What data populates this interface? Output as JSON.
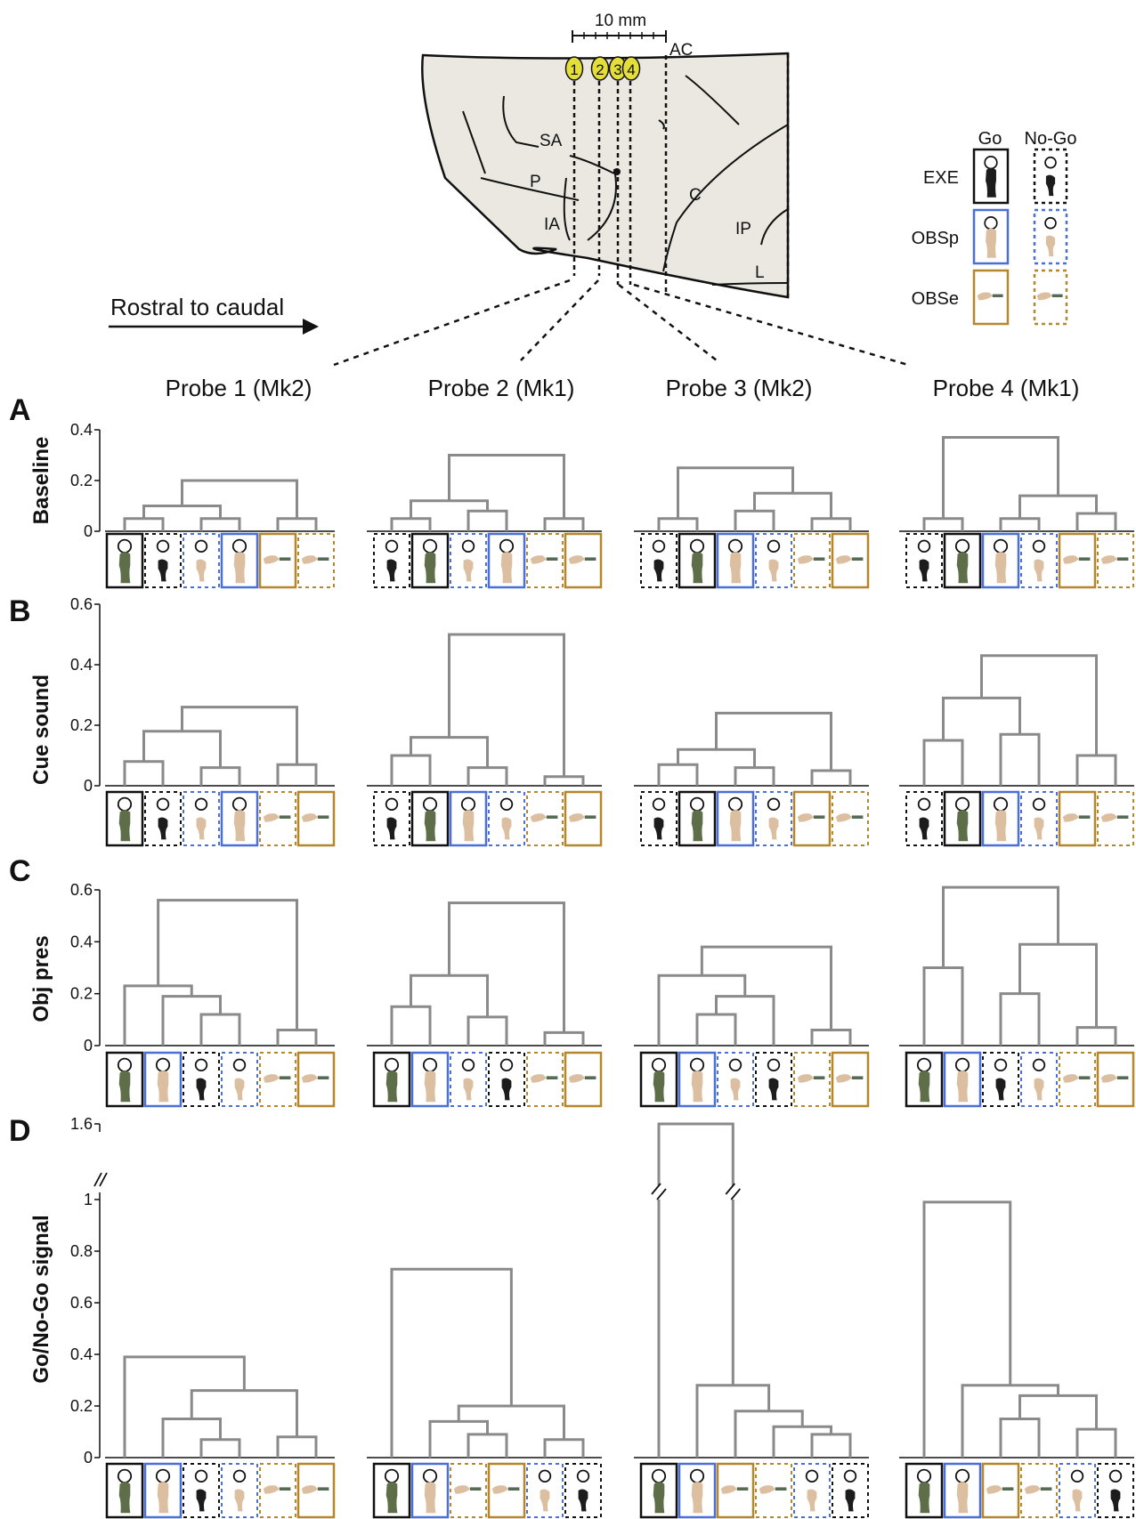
{
  "header": {
    "scale_bar": "10 mm",
    "rostral_caudal": "Rostral to caudal",
    "brain_labels": [
      "AC",
      "SA",
      "P",
      "IA",
      "C",
      "IP",
      "L"
    ],
    "probe_markers": [
      "1",
      "2",
      "3",
      "4"
    ]
  },
  "legend": {
    "go": "Go",
    "nogo": "No-Go",
    "conditions": [
      {
        "key": "EXE",
        "label": "EXE",
        "color": "#111111"
      },
      {
        "key": "OBSp",
        "label": "OBSp",
        "color": "#4a6fd6"
      },
      {
        "key": "OBSe",
        "label": "OBSe",
        "color": "#b5862a"
      }
    ]
  },
  "probes": [
    "Probe 1 (Mk2)",
    "Probe 2 (Mk1)",
    "Probe 3 (Mk2)",
    "Probe 4 (Mk1)"
  ],
  "colors": {
    "dendrogram": "#8a8a8a",
    "brain": "#ebe8e1",
    "marker": "#e3de3a"
  },
  "chart_data": [
    {
      "type": "dendrogram",
      "panel": "A",
      "ylabel": "Baseline",
      "yticks": [
        "0",
        "0.2",
        "0.4"
      ],
      "ylim": [
        0,
        0.4
      ],
      "probes": [
        {
          "leaves": [
            "EXE-Go",
            "EXE-NoGo",
            "OBSp-NoGo",
            "OBSp-Go",
            "OBSe-Go",
            "OBSe-NoGo"
          ],
          "merges": [
            [
              0,
              1,
              0.05
            ],
            [
              2,
              3,
              0.05
            ],
            [
              4,
              5,
              0.05
            ],
            [
              6,
              7,
              0.1
            ],
            [
              9,
              8,
              0.2
            ]
          ]
        },
        {
          "leaves": [
            "EXE-NoGo",
            "EXE-Go",
            "OBSp-NoGo",
            "OBSp-Go",
            "OBSe-NoGo",
            "OBSe-Go"
          ],
          "merges": [
            [
              0,
              1,
              0.05
            ],
            [
              2,
              3,
              0.08
            ],
            [
              6,
              7,
              0.12
            ],
            [
              4,
              5,
              0.05
            ],
            [
              8,
              9,
              0.3
            ]
          ]
        },
        {
          "leaves": [
            "EXE-NoGo",
            "EXE-Go",
            "OBSp-Go",
            "OBSp-NoGo",
            "OBSe-NoGo",
            "OBSe-Go"
          ],
          "merges": [
            [
              0,
              1,
              0.05
            ],
            [
              2,
              3,
              0.08
            ],
            [
              4,
              5,
              0.05
            ],
            [
              7,
              8,
              0.15
            ],
            [
              6,
              9,
              0.25
            ]
          ]
        },
        {
          "leaves": [
            "EXE-NoGo",
            "EXE-Go",
            "OBSp-Go",
            "OBSp-NoGo",
            "OBSe-Go",
            "OBSe-NoGo"
          ],
          "merges": [
            [
              0,
              1,
              0.05
            ],
            [
              2,
              3,
              0.05
            ],
            [
              4,
              5,
              0.07
            ],
            [
              7,
              8,
              0.14
            ],
            [
              6,
              9,
              0.37
            ]
          ]
        }
      ]
    },
    {
      "type": "dendrogram",
      "panel": "B",
      "ylabel": "Cue sound",
      "yticks": [
        "0",
        "0.2",
        "0.4",
        "0.6"
      ],
      "ylim": [
        0,
        0.6
      ],
      "probes": [
        {
          "leaves": [
            "EXE-Go",
            "EXE-NoGo",
            "OBSp-NoGo",
            "OBSp-Go",
            "OBSe-NoGo",
            "OBSe-Go"
          ],
          "merges": [
            [
              0,
              1,
              0.08
            ],
            [
              2,
              3,
              0.06
            ],
            [
              4,
              5,
              0.07
            ],
            [
              6,
              7,
              0.18
            ],
            [
              8,
              9,
              0.26
            ]
          ]
        },
        {
          "leaves": [
            "EXE-NoGo",
            "EXE-Go",
            "OBSp-Go",
            "OBSp-NoGo",
            "OBSe-NoGo",
            "OBSe-Go"
          ],
          "merges": [
            [
              0,
              1,
              0.1
            ],
            [
              2,
              3,
              0.06
            ],
            [
              4,
              5,
              0.03
            ],
            [
              6,
              7,
              0.16
            ],
            [
              9,
              8,
              0.5
            ]
          ]
        },
        {
          "leaves": [
            "EXE-NoGo",
            "EXE-Go",
            "OBSp-Go",
            "OBSp-NoGo",
            "OBSe-Go",
            "OBSe-NoGo"
          ],
          "merges": [
            [
              0,
              1,
              0.07
            ],
            [
              2,
              3,
              0.06
            ],
            [
              4,
              5,
              0.05
            ],
            [
              6,
              7,
              0.12
            ],
            [
              9,
              8,
              0.24
            ]
          ]
        },
        {
          "leaves": [
            "EXE-NoGo",
            "EXE-Go",
            "OBSp-Go",
            "OBSp-NoGo",
            "OBSe-Go",
            "OBSe-NoGo"
          ],
          "merges": [
            [
              0,
              1,
              0.15
            ],
            [
              2,
              3,
              0.17
            ],
            [
              6,
              7,
              0.29
            ],
            [
              4,
              5,
              0.1
            ],
            [
              8,
              9,
              0.43
            ]
          ]
        }
      ]
    },
    {
      "type": "dendrogram",
      "panel": "C",
      "ylabel": "Obj pres",
      "yticks": [
        "0",
        "0.2",
        "0.4",
        "0.6"
      ],
      "ylim": [
        0,
        0.6
      ],
      "probes": [
        {
          "leaves": [
            "EXE-Go",
            "OBSp-Go",
            "EXE-NoGo",
            "OBSp-NoGo",
            "OBSe-NoGo",
            "OBSe-Go"
          ],
          "merges": [
            [
              2,
              3,
              0.12
            ],
            [
              1,
              6,
              0.19
            ],
            [
              0,
              7,
              0.23
            ],
            [
              4,
              5,
              0.06
            ],
            [
              8,
              9,
              0.56
            ]
          ]
        },
        {
          "leaves": [
            "EXE-Go",
            "OBSp-Go",
            "OBSp-NoGo",
            "EXE-NoGo",
            "OBSe-NoGo",
            "OBSe-Go"
          ],
          "merges": [
            [
              0,
              1,
              0.15
            ],
            [
              2,
              3,
              0.11
            ],
            [
              6,
              7,
              0.27
            ],
            [
              4,
              5,
              0.05
            ],
            [
              8,
              9,
              0.55
            ]
          ]
        },
        {
          "leaves": [
            "EXE-Go",
            "OBSp-Go",
            "OBSp-NoGo",
            "EXE-NoGo",
            "OBSe-NoGo",
            "OBSe-Go"
          ],
          "merges": [
            [
              1,
              2,
              0.12
            ],
            [
              6,
              3,
              0.19
            ],
            [
              0,
              7,
              0.27
            ],
            [
              4,
              5,
              0.06
            ],
            [
              8,
              9,
              0.38
            ]
          ]
        },
        {
          "leaves": [
            "EXE-Go",
            "OBSp-Go",
            "EXE-NoGo",
            "OBSp-NoGo",
            "OBSe-NoGo",
            "OBSe-Go"
          ],
          "merges": [
            [
              0,
              1,
              0.3
            ],
            [
              2,
              3,
              0.2
            ],
            [
              4,
              5,
              0.07
            ],
            [
              7,
              8,
              0.39
            ],
            [
              6,
              9,
              0.61
            ]
          ]
        }
      ]
    },
    {
      "type": "dendrogram",
      "panel": "D",
      "ylabel": "Go/No-Go signal",
      "yticks": [
        "0",
        "0.2",
        "0.4",
        "0.6",
        "0.8",
        "1",
        "1.6"
      ],
      "ylim": [
        0,
        1.6
      ],
      "axis_break": true,
      "probes": [
        {
          "leaves": [
            "EXE-Go",
            "OBSp-Go",
            "EXE-NoGo",
            "OBSp-NoGo",
            "OBSe-NoGo",
            "OBSe-Go"
          ],
          "merges": [
            [
              2,
              3,
              0.07
            ],
            [
              1,
              6,
              0.15
            ],
            [
              4,
              5,
              0.08
            ],
            [
              7,
              8,
              0.26
            ],
            [
              0,
              9,
              0.39
            ]
          ]
        },
        {
          "leaves": [
            "EXE-Go",
            "OBSp-Go",
            "OBSe-NoGo",
            "OBSe-Go",
            "OBSp-NoGo",
            "EXE-NoGo"
          ],
          "merges": [
            [
              2,
              3,
              0.09
            ],
            [
              1,
              6,
              0.14
            ],
            [
              4,
              5,
              0.07
            ],
            [
              7,
              8,
              0.2
            ],
            [
              0,
              9,
              0.73
            ]
          ]
        },
        {
          "leaves": [
            "EXE-Go",
            "OBSp-Go",
            "OBSe-Go",
            "OBSe-NoGo",
            "OBSp-NoGo",
            "EXE-NoGo"
          ],
          "merges": [
            [
              4,
              5,
              0.09
            ],
            [
              3,
              6,
              0.12
            ],
            [
              2,
              7,
              0.18
            ],
            [
              1,
              8,
              0.28
            ],
            [
              0,
              9,
              1.6
            ]
          ]
        },
        {
          "leaves": [
            "EXE-Go",
            "OBSp-Go",
            "OBSe-Go",
            "OBSe-NoGo",
            "OBSp-NoGo",
            "EXE-NoGo"
          ],
          "merges": [
            [
              4,
              5,
              0.11
            ],
            [
              2,
              3,
              0.15
            ],
            [
              7,
              6,
              0.24
            ],
            [
              1,
              8,
              0.28
            ],
            [
              0,
              9,
              0.99
            ]
          ]
        }
      ]
    }
  ]
}
